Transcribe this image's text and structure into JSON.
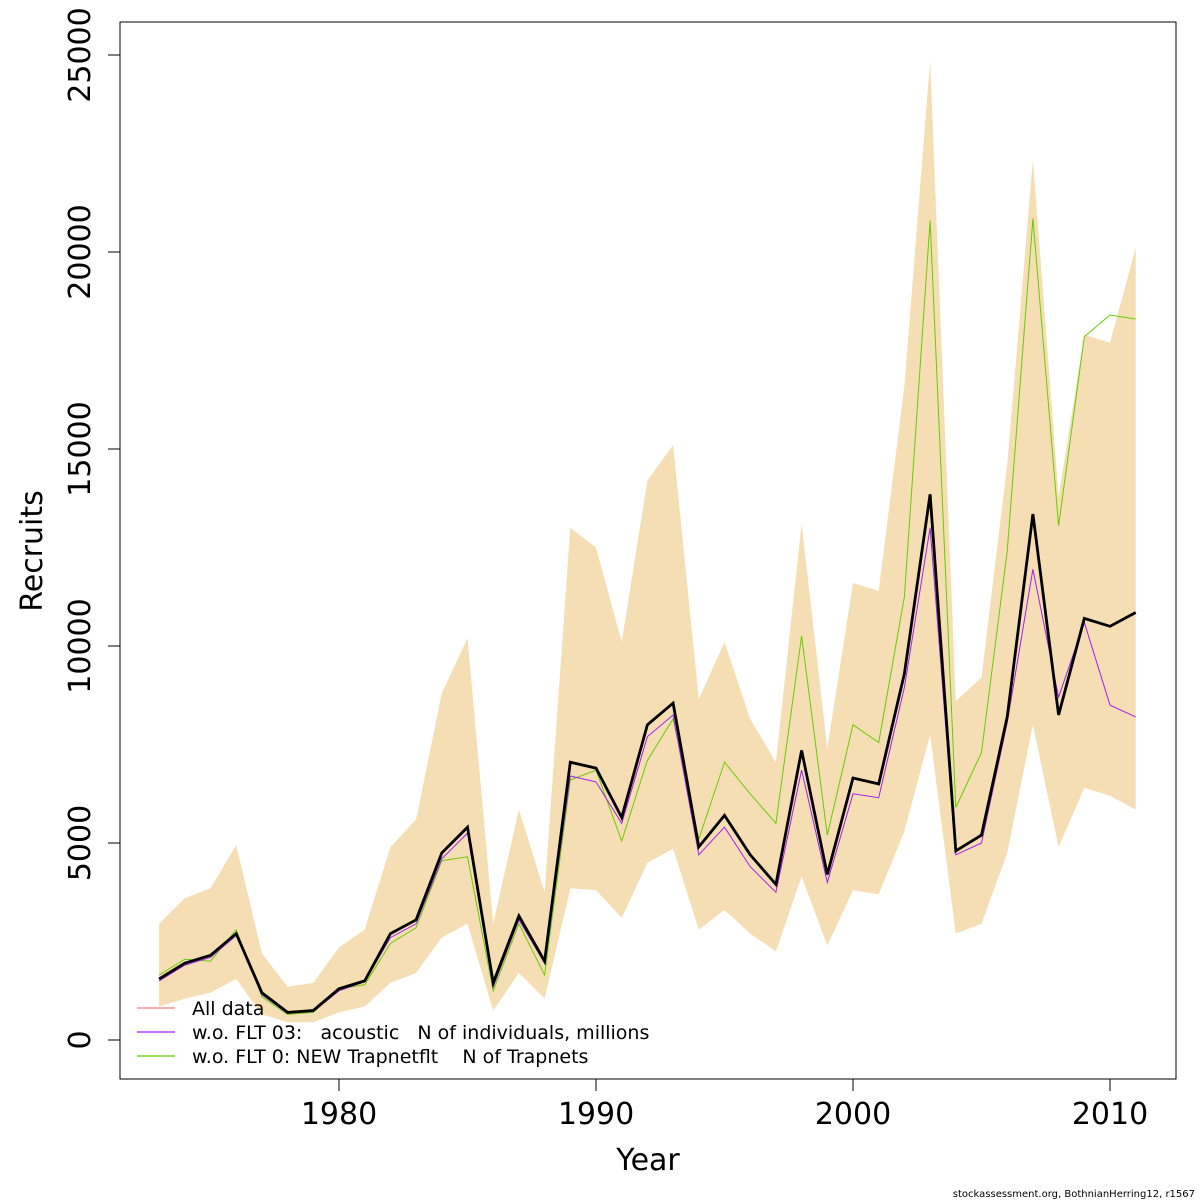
{
  "chart_data": {
    "type": "line",
    "title": "",
    "xlabel": "Year",
    "ylabel": "Recruits",
    "xlim": [
      1971,
      2012.5
    ],
    "ylim": [
      -1000,
      26000
    ],
    "x_ticks": [
      1980,
      1990,
      2000,
      2010
    ],
    "x_tick_labels": [
      "1980",
      "1990",
      "2000",
      "2010"
    ],
    "y_ticks": [
      0,
      5000,
      10000,
      15000,
      20000,
      25000
    ],
    "y_tick_labels": [
      "0",
      "5000",
      "10000",
      "15000",
      "20000",
      "25000"
    ],
    "grid": false,
    "legend_position": "bottom-left",
    "x": [
      1973,
      1974,
      1975,
      1976,
      1977,
      1978,
      1979,
      1980,
      1981,
      1982,
      1983,
      1984,
      1985,
      1986,
      1987,
      1988,
      1989,
      1990,
      1991,
      1992,
      1993,
      1994,
      1995,
      1996,
      1997,
      1998,
      1999,
      2000,
      2001,
      2002,
      2003,
      2004,
      2005,
      2006,
      2007,
      2008,
      2009,
      2010,
      2011
    ],
    "band": {
      "name": "confidence interval",
      "color": "#F5DEB3",
      "upper": [
        2950,
        3600,
        3850,
        4950,
        2200,
        1350,
        1450,
        2350,
        2800,
        4900,
        5600,
        8800,
        10200,
        2950,
        5850,
        3750,
        13000,
        12500,
        10100,
        14200,
        15100,
        8650,
        10100,
        8150,
        7050,
        13100,
        7400,
        11600,
        11400,
        16600,
        24850,
        8600,
        9200,
        14600,
        22350,
        13800,
        17900,
        17700,
        20100
      ],
      "lower": [
        850,
        1050,
        1200,
        1550,
        650,
        450,
        450,
        700,
        850,
        1450,
        1700,
        2600,
        2950,
        750,
        1700,
        1050,
        3850,
        3800,
        3100,
        4500,
        4850,
        2800,
        3300,
        2700,
        2250,
        4150,
        2400,
        3800,
        3700,
        5300,
        7750,
        2700,
        2950,
        4750,
        8000,
        4900,
        6400,
        6200,
        5850
      ]
    },
    "series": [
      {
        "name": "All data",
        "color": "#000000",
        "legend_color": "#F08080",
        "values": [
          1550,
          1950,
          2150,
          2700,
          1200,
          700,
          750,
          1300,
          1500,
          2700,
          3050,
          4750,
          5400,
          1450,
          3150,
          2000,
          7050,
          6900,
          5650,
          8000,
          8550,
          4900,
          5700,
          4700,
          3950,
          7350,
          4200,
          6650,
          6500,
          9300,
          13850,
          4800,
          5200,
          8200,
          13350,
          8250,
          10700,
          10500,
          10850
        ]
      },
      {
        "name": "w.o. FLT 03:   acoustic   N of individuals, millions",
        "color": "#A020F0",
        "legend_color": "#A020F0",
        "values": [
          1500,
          1900,
          2100,
          2650,
          1150,
          680,
          720,
          1250,
          1480,
          2600,
          2950,
          4600,
          5250,
          1350,
          3050,
          1950,
          6700,
          6550,
          5500,
          7700,
          8250,
          4700,
          5400,
          4400,
          3750,
          6850,
          4000,
          6250,
          6150,
          8950,
          13000,
          4700,
          5000,
          8050,
          11950,
          8700,
          10600,
          8500,
          8200
        ]
      },
      {
        "name": "w.o. FLT 0: NEW Trapnetflt    N of Trapnets",
        "color": "#66CC00",
        "legend_color": "#66CC00",
        "values": [
          1650,
          2050,
          2000,
          2800,
          1100,
          650,
          700,
          1300,
          1400,
          2450,
          2850,
          4550,
          4650,
          1250,
          2950,
          1650,
          6600,
          6850,
          5050,
          7100,
          8150,
          5100,
          7050,
          6250,
          5500,
          10250,
          5200,
          8000,
          7550,
          11250,
          20800,
          5900,
          7300,
          12400,
          20850,
          13050,
          17850,
          18400,
          18300
        ]
      }
    ]
  },
  "legend": {
    "items": [
      {
        "label": "All data",
        "color": "#F08080"
      },
      {
        "label": "w.o. FLT 03:   acoustic   N of individuals, millions",
        "color": "#A020F0"
      },
      {
        "label": "w.o. FLT 0: NEW Trapnetflt    N of Trapnets",
        "color": "#66CC00"
      }
    ]
  },
  "footer": "stockassessment.org, BothnianHerring12, r1567"
}
